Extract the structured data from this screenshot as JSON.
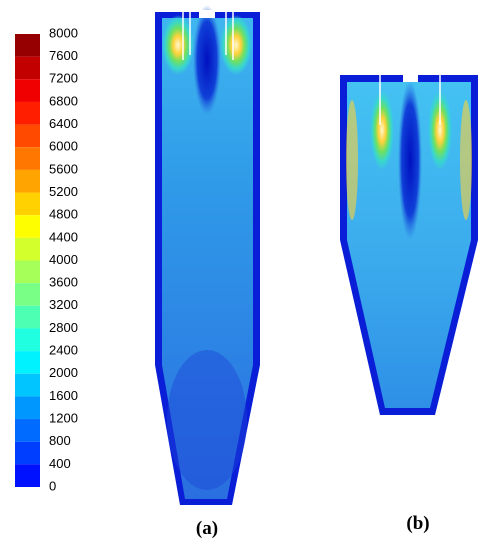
{
  "colorbar": {
    "ticks": [
      8000,
      7600,
      7200,
      6800,
      6400,
      6000,
      5600,
      5200,
      4800,
      4400,
      4000,
      3600,
      3200,
      2800,
      2400,
      2000,
      1600,
      1200,
      800,
      400,
      0
    ]
  },
  "panels": [
    {
      "label": "(a)"
    },
    {
      "label": "(b)"
    }
  ]
}
